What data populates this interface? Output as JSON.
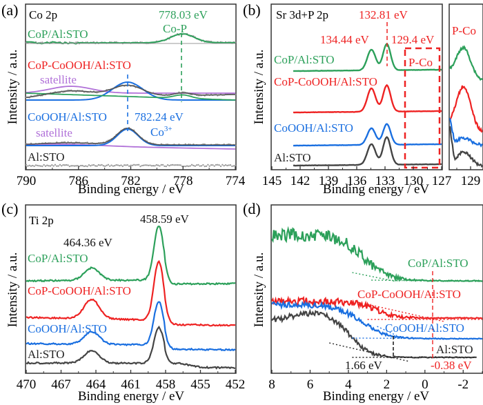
{
  "colors": {
    "green": "#2ca05a",
    "red": "#ee2222",
    "blue": "#1a6fe0",
    "dark": "#444444",
    "purple": "#b070d8",
    "fit_blue": "#1a6fe0",
    "fit_green": "#2ca05a",
    "gray_dots": "#999999"
  },
  "chart_data": [
    {
      "panel": "(a)",
      "type": "line",
      "title": "Co 2p",
      "xlabel": "Binding energy / eV",
      "ylabel": "Intensity / a.u.",
      "xlim": [
        790,
        774
      ],
      "xticks": [
        790,
        786,
        782,
        778,
        774
      ],
      "series": [
        {
          "name": "CoP/Al:STO",
          "color": "green",
          "peaks": [
            {
              "center": 778.03,
              "label": "Co-P"
            }
          ]
        },
        {
          "name": "CoP-CoOOH/Al:STO",
          "color": "red",
          "peaks": [
            {
              "center": 782.24,
              "label": "Co3+"
            },
            {
              "center": 778.03,
              "label": "Co-P"
            },
            {
              "center": 786.5,
              "label": "satellite"
            }
          ]
        },
        {
          "name": "CoOOH/Al:STO",
          "color": "blue",
          "peaks": [
            {
              "center": 782.24,
              "label": "Co3+"
            },
            {
              "center": 786.5,
              "label": "satellite"
            }
          ]
        },
        {
          "name": "Al:STO",
          "color": "dark",
          "peaks": []
        }
      ],
      "annotations": [
        {
          "text": "778.03 eV",
          "color": "green",
          "x": 778.03
        },
        {
          "text": "Co-P",
          "color": "green"
        },
        {
          "text": "782.24 eV",
          "color": "blue",
          "x": 782.24
        },
        {
          "text": "Co",
          "sup": "3+",
          "color": "blue"
        },
        {
          "text": "satellite",
          "color": "purple"
        },
        {
          "text": "satellite",
          "color": "purple"
        }
      ]
    },
    {
      "panel": "(b)",
      "type": "line",
      "title": "Sr 3d+P 2p",
      "xlabel": "Binding energy / eV",
      "ylabel": "Intensity / a.u.",
      "xlim": [
        145,
        127
      ],
      "xticks": [
        145,
        142,
        139,
        136,
        133,
        130,
        127
      ],
      "inset": {
        "label": "P-Co",
        "xticks": [
          129
        ],
        "xlim": [
          127.5,
          130
        ]
      },
      "series": [
        {
          "name": "CoP/Al:STO",
          "color": "green",
          "peaks": [
            134.44,
            132.81
          ]
        },
        {
          "name": "CoP-CoOOH/Al:STO",
          "color": "red",
          "peaks": [
            134.44,
            132.81
          ]
        },
        {
          "name": "CoOOH/Al:STO",
          "color": "blue",
          "peaks": [
            134.44,
            132.81
          ]
        },
        {
          "name": "Al:STO",
          "color": "dark",
          "peaks": [
            134.44,
            132.81
          ]
        }
      ],
      "annotations": [
        {
          "text": "132.81 eV",
          "color": "red",
          "x": 132.81
        },
        {
          "text": "134.44 eV",
          "color": "red"
        },
        {
          "text": "129.4 eV",
          "color": "red"
        },
        {
          "text": "P-Co",
          "color": "red"
        },
        {
          "text": "P-Co",
          "color": "red"
        }
      ]
    },
    {
      "panel": "(c)",
      "type": "line",
      "title": "Ti 2p",
      "xlabel": "Binding energy / eV",
      "ylabel": "Intensity / a.u.",
      "xlim": [
        470,
        452
      ],
      "xticks": [
        470,
        467,
        464,
        461,
        458,
        455,
        452
      ],
      "series": [
        {
          "name": "CoP/Al:STO",
          "color": "green",
          "peaks": [
            464.36,
            458.59
          ]
        },
        {
          "name": "CoP-CoOOH/Al:STO",
          "color": "red",
          "peaks": [
            464.36,
            458.59
          ]
        },
        {
          "name": "CoOOH/Al:STO",
          "color": "blue",
          "peaks": [
            464.36,
            458.59
          ]
        },
        {
          "name": "Al:STO",
          "color": "dark",
          "peaks": [
            464.36,
            458.59
          ]
        }
      ],
      "annotations": [
        {
          "text": "458.59 eV",
          "color": "dark"
        },
        {
          "text": "464.36 eV",
          "color": "dark"
        }
      ]
    },
    {
      "panel": "(d)",
      "type": "line",
      "title": "",
      "xlabel": "Binding energy / eV",
      "ylabel": "Intensity / a.u.",
      "xlim": [
        8,
        -3
      ],
      "xticks": [
        8,
        6,
        4,
        2,
        0,
        -2
      ],
      "series": [
        {
          "name": "CoP/Al:STO",
          "color": "green"
        },
        {
          "name": "CoP-CoOOH/Al:STO",
          "color": "red"
        },
        {
          "name": "CoOOH/Al:STO",
          "color": "blue"
        },
        {
          "name": "Al:STO",
          "color": "dark"
        }
      ],
      "annotations": [
        {
          "text": "1.66 eV",
          "color": "dark",
          "x": 1.66
        },
        {
          "text": "-0.38 eV",
          "color": "red",
          "x": -0.38
        }
      ]
    }
  ],
  "labels": {
    "a": {
      "letter": "(a)",
      "title": "Co 2p",
      "s1": "CoP/Al:STO",
      "s2": "CoP-CoOOH/Al:STO",
      "s3": "CoOOH/Al:STO",
      "s4": "Al:STO",
      "ann1": "778.03 eV",
      "ann2": "Co-P",
      "ann3": "782.24 eV",
      "ann4": "Co",
      "ann4sup": "3+",
      "sat": "satellite",
      "xt": [
        "790",
        "786",
        "782",
        "778",
        "774"
      ]
    },
    "b": {
      "letter": "(b)",
      "title": "Sr 3d+P 2p",
      "s1": "CoP/Al:STO",
      "s2": "CoP-CoOOH/Al:STO",
      "s3": "CoOOH/Al:STO",
      "s4": "Al:STO",
      "ann1": "132.81 eV",
      "ann2": "134.44 eV",
      "ann3": "129.4 eV",
      "ann4": "P-Co",
      "inset": "P-Co",
      "xt": [
        "145",
        "142",
        "139",
        "136",
        "133",
        "130",
        "127"
      ],
      "xt_inset": "129"
    },
    "c": {
      "letter": "(c)",
      "title": "Ti 2p",
      "s1": "CoP/Al:STO",
      "s2": "CoP-CoOOH/Al:STO",
      "s3": "CoOOH/Al:STO",
      "s4": "Al:STO",
      "ann1": "458.59 eV",
      "ann2": "464.36 eV",
      "xt": [
        "470",
        "467",
        "464",
        "461",
        "458",
        "455",
        "452"
      ]
    },
    "d": {
      "letter": "(d)",
      "s1": "CoP/Al:STO",
      "s2": "CoP-CoOOH/Al:STO",
      "s3": "CoOOH/Al:STO",
      "s4": "Al:STO",
      "ann1": "1.66 eV",
      "ann2": "-0.38 eV",
      "xt": [
        "8",
        "6",
        "4",
        "2",
        "0",
        "-2"
      ]
    },
    "xlabel": "Binding energy / eV",
    "ylabel": "Intensity / a.u."
  }
}
